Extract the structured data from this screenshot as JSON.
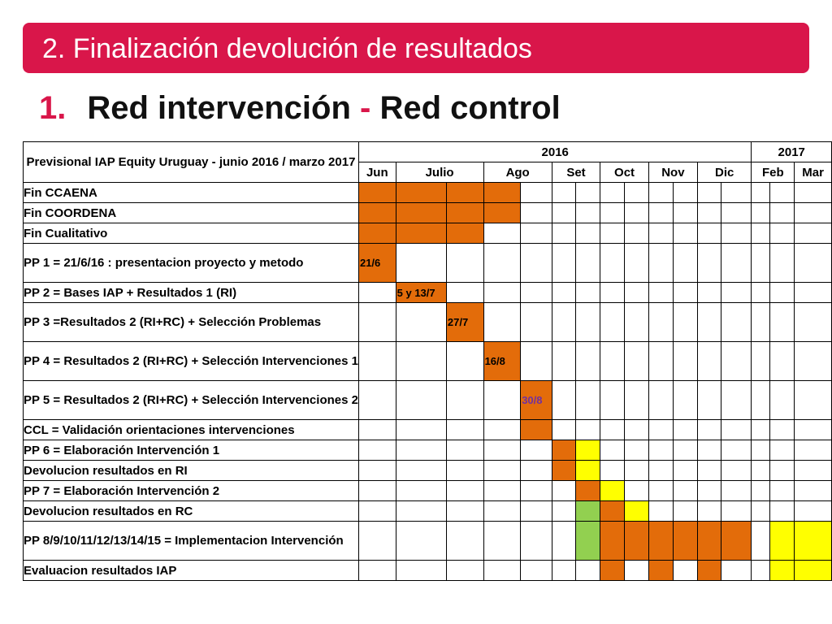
{
  "slide": {
    "title": "2. Finalización devolución de resultados",
    "subtitle_number": "1.",
    "subtitle_part1": "Red intervención",
    "subtitle_separator": "-",
    "subtitle_part2": "Red control"
  },
  "table": {
    "header_label": "Previsional IAP Equity Uruguay - junio 2016 / marzo 2017",
    "years": [
      "2016",
      "2017"
    ],
    "months": [
      "Jun",
      "Julio",
      "Ago",
      "Set",
      "Oct",
      "Nov",
      "Dic",
      "Feb",
      "Mar"
    ],
    "rows": [
      {
        "label": "Fin CCAENA",
        "cells": [
          "o",
          "o",
          "o",
          "o",
          "",
          "",
          "",
          "",
          "",
          "",
          "",
          "",
          "",
          "",
          "",
          ""
        ]
      },
      {
        "label": "Fin COORDENA",
        "cells": [
          "o",
          "o",
          "o",
          "o",
          "",
          "",
          "",
          "",
          "",
          "",
          "",
          "",
          "",
          "",
          "",
          ""
        ]
      },
      {
        "label": "Fin Cualitativo",
        "cells": [
          "o",
          "o",
          "o",
          "",
          "",
          "",
          "",
          "",
          "",
          "",
          "",
          "",
          "",
          "",
          "",
          ""
        ]
      },
      {
        "label": "PP 1 = 21/6/16 : presentacion proyecto y metodo",
        "cells": [
          "o",
          "",
          "",
          "",
          "",
          "",
          "",
          "",
          "",
          "",
          "",
          "",
          "",
          "",
          "",
          ""
        ],
        "marker": {
          "col": 0,
          "text": "21/6",
          "color": "dark"
        }
      },
      {
        "label": "PP 2 =  Bases IAP + Resultados 1 (RI)",
        "cells": [
          "",
          "o",
          "",
          "",
          "",
          "",
          "",
          "",
          "",
          "",
          "",
          "",
          "",
          "",
          "",
          ""
        ],
        "marker": {
          "col": 1,
          "text": "5 y 13/7",
          "color": "dark"
        }
      },
      {
        "label": "PP 3 =Resultados 2 (RI+RC) + Selección Problemas",
        "cells": [
          "",
          "",
          "o",
          "",
          "",
          "",
          "",
          "",
          "",
          "",
          "",
          "",
          "",
          "",
          "",
          ""
        ],
        "marker": {
          "col": 2,
          "text": "27/7",
          "color": "dark"
        }
      },
      {
        "label": "PP 4 = Resultados 2 (RI+RC) + Selección Intervenciones 1",
        "cells": [
          "",
          "",
          "",
          "o",
          "",
          "",
          "",
          "",
          "",
          "",
          "",
          "",
          "",
          "",
          "",
          ""
        ],
        "marker": {
          "col": 3,
          "text": "16/8",
          "color": "dark"
        }
      },
      {
        "label": "PP 5 = Resultados 2 (RI+RC) + Selección Intervenciones 2",
        "cells": [
          "",
          "",
          "",
          "",
          "o",
          "",
          "",
          "",
          "",
          "",
          "",
          "",
          "",
          "",
          "",
          ""
        ],
        "marker": {
          "col": 4,
          "text": "30/8",
          "color": "purple"
        }
      },
      {
        "label": "CCL = Validación orientaciones intervenciones",
        "cells": [
          "",
          "",
          "",
          "",
          "o",
          "",
          "",
          "",
          "",
          "",
          "",
          "",
          "",
          "",
          "",
          ""
        ]
      },
      {
        "label": "PP 6 = Elaboración Intervención 1",
        "cells": [
          "",
          "",
          "",
          "",
          "",
          "o",
          "y",
          "",
          "",
          "",
          "",
          "",
          "",
          "",
          "",
          ""
        ]
      },
      {
        "label": "Devolucion resultados en RI",
        "cells": [
          "",
          "",
          "",
          "",
          "",
          "o",
          "y",
          "",
          "",
          "",
          "",
          "",
          "",
          "",
          "",
          ""
        ]
      },
      {
        "label": "PP 7 = Elaboración Intervención 2",
        "cells": [
          "",
          "",
          "",
          "",
          "",
          "",
          "o",
          "y",
          "",
          "",
          "",
          "",
          "",
          "",
          "",
          ""
        ]
      },
      {
        "label": "Devolucion resultados en RC",
        "cells": [
          "",
          "",
          "",
          "",
          "",
          "",
          "g",
          "o",
          "y",
          "",
          "",
          "",
          "",
          "",
          "",
          ""
        ]
      },
      {
        "label": "PP 8/9/10/11/12/13/14/15 = Implementacion Intervención",
        "cells": [
          "",
          "",
          "",
          "",
          "",
          "",
          "g",
          "o",
          "o",
          "o",
          "o",
          "o",
          "o",
          "",
          "y",
          "y"
        ]
      },
      {
        "label": "Evaluacion resultados IAP",
        "cells": [
          "",
          "",
          "",
          "",
          "",
          "",
          "",
          "o",
          "",
          "o",
          "",
          "o",
          "",
          "",
          "y",
          "y"
        ]
      }
    ]
  }
}
